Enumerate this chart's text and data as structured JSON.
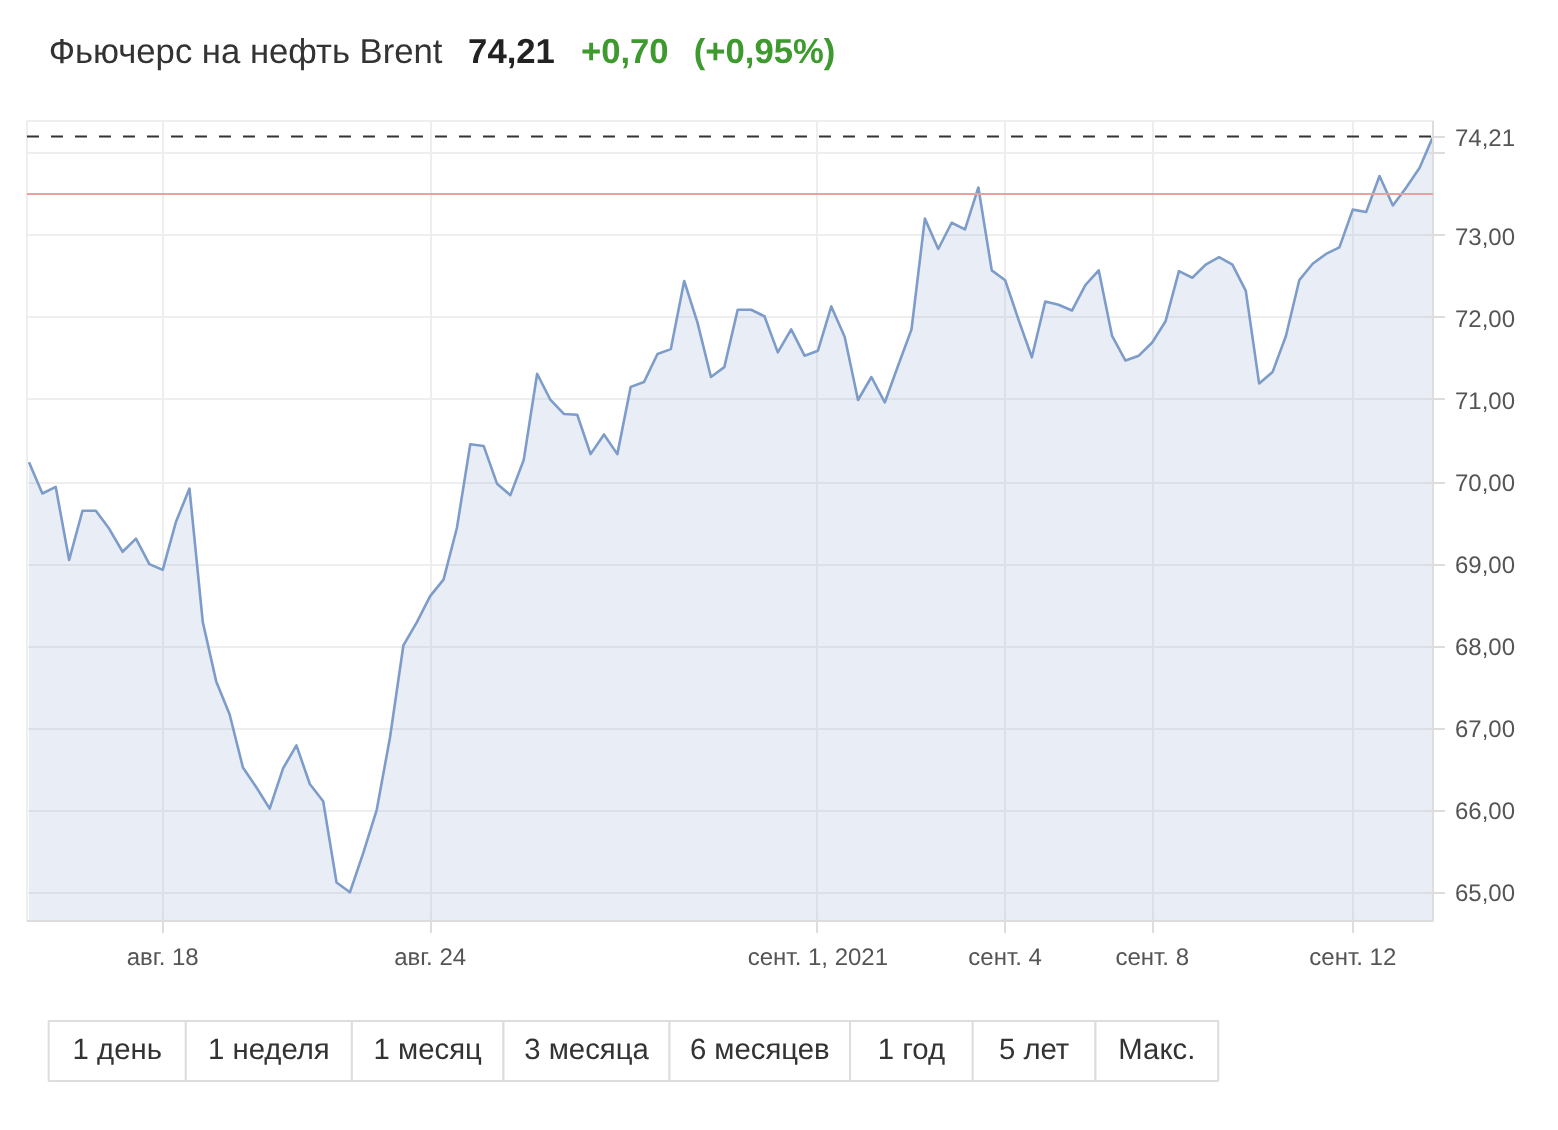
{
  "chart_data": {
    "type": "area",
    "title": "Фьючерс на нефть Brent",
    "annotations": [
      "74,21",
      "+0,70",
      "(+0,95%)",
      "1 день",
      "1 неделя",
      "1 месяц",
      "3 месяца",
      "6 месяцев",
      "1 год",
      "5 лет",
      "Макс."
    ],
    "categories": [
      null,
      null,
      null,
      null,
      null,
      null,
      null,
      null,
      null,
      null,
      "авг. 18",
      null,
      null,
      null,
      null,
      null,
      null,
      null,
      null,
      null,
      null,
      null,
      null,
      null,
      null,
      null,
      null,
      null,
      null,
      null,
      "авг. 24",
      null,
      null,
      null,
      null,
      null,
      null,
      null,
      null,
      null,
      null,
      null,
      null,
      null,
      null,
      null,
      null,
      null,
      null,
      null,
      null,
      null,
      null,
      null,
      null,
      null,
      null,
      null,
      null,
      "сент. 1, 2021",
      null,
      null,
      null,
      null,
      null,
      null,
      null,
      null,
      null,
      null,
      null,
      null,
      null,
      "сент. 4",
      null,
      null,
      null,
      null,
      null,
      null,
      null,
      null,
      null,
      null,
      "сент. 8",
      null,
      null,
      null,
      null,
      null,
      null,
      null,
      null,
      null,
      null,
      null,
      null,
      null,
      null,
      "сент. 12",
      null,
      null,
      null,
      null,
      null,
      null
    ],
    "series": [
      {
        "color": "#7d9cc9",
        "values": [
          70.24,
          69.86,
          69.94,
          69.05,
          69.65,
          69.65,
          69.43,
          69.15,
          69.31,
          69.0,
          68.93,
          69.52,
          69.92,
          68.29,
          67.57,
          67.17,
          66.52,
          66.28,
          66.02,
          66.51,
          66.79,
          66.32,
          66.11,
          65.12,
          65.0,
          65.48,
          66.0,
          66.89,
          68.01,
          68.29,
          68.61,
          68.81,
          69.44,
          70.46,
          70.44,
          69.98,
          69.84,
          70.27,
          71.32,
          71.0,
          70.83,
          70.82,
          70.34,
          70.58,
          70.34,
          71.16,
          71.22,
          71.56,
          71.62,
          72.45,
          71.94,
          71.28,
          71.4,
          72.1,
          72.1,
          72.02,
          71.58,
          71.86,
          71.54,
          71.6,
          72.14,
          71.77,
          71.0,
          71.28,
          70.97,
          71.42,
          71.86,
          73.21,
          72.84,
          73.16,
          73.08,
          73.59,
          72.58,
          72.46,
          71.98,
          71.52,
          72.2,
          72.16,
          72.09,
          72.4,
          72.58,
          71.78,
          71.48,
          71.54,
          71.7,
          71.96,
          72.57,
          72.49,
          72.65,
          72.74,
          72.65,
          72.33,
          71.2,
          71.34,
          71.78,
          72.46,
          72.66,
          72.78,
          72.86,
          73.32,
          73.29,
          73.73,
          73.37,
          73.59,
          73.83,
          74.21
        ]
      }
    ],
    "ylim": [
      64.65,
      74.4
    ],
    "yticks": [
      {
        "value": 65,
        "label": "65,00"
      },
      {
        "value": 66,
        "label": "66,00"
      },
      {
        "value": 67,
        "label": "67,00"
      },
      {
        "value": 68,
        "label": "68,00"
      },
      {
        "value": 69,
        "label": "69,00"
      },
      {
        "value": 70,
        "label": "70,00"
      },
      {
        "value": 71,
        "label": "71,00"
      },
      {
        "value": 72,
        "label": "72,00"
      },
      {
        "value": 73,
        "label": "73,00"
      },
      {
        "value": 74,
        "label": null
      }
    ],
    "ref_lines": [
      {
        "axis": "y",
        "value": 74.21,
        "label": "74,21",
        "color": "#333333",
        "line_style": "dashed"
      },
      {
        "axis": "y",
        "value": 73.51,
        "color": "#e8a0a0",
        "line_style": "solid"
      }
    ],
    "grid": true,
    "marker": "none",
    "line_style": "solid"
  }
}
